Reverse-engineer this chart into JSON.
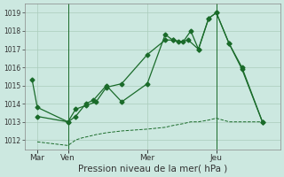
{
  "background_color": "#cce8e0",
  "grid_color": "#aaccbb",
  "line_color": "#1a6b2a",
  "title": "Pression niveau de la mer( hPa )",
  "ylim": [
    1011.5,
    1019.5
  ],
  "yticks": [
    1012,
    1013,
    1014,
    1015,
    1016,
    1017,
    1018,
    1019
  ],
  "xlim": [
    0,
    10.0
  ],
  "xtick_pos": [
    0.5,
    1.7,
    4.8,
    7.5
  ],
  "xtick_labels": [
    "Mar",
    "Ven",
    "Mer",
    "Jeu"
  ],
  "vline_x": [
    1.7,
    7.5
  ],
  "series1_x": [
    0.3,
    0.5,
    1.7,
    2.0,
    2.4,
    2.8,
    3.2,
    3.8,
    4.8,
    5.5,
    5.8,
    6.0,
    6.4,
    6.8,
    7.2,
    7.5,
    8.0,
    8.5,
    9.3
  ],
  "series1_y": [
    1015.3,
    1013.8,
    1013.0,
    1013.7,
    1013.9,
    1014.1,
    1014.9,
    1015.1,
    1016.7,
    1017.5,
    1017.5,
    1017.4,
    1017.5,
    1017.0,
    1018.7,
    1019.0,
    1017.3,
    1016.0,
    1013.0
  ],
  "series2_x": [
    0.5,
    1.7,
    2.0,
    2.4,
    2.7,
    3.2,
    3.8,
    4.8,
    5.5,
    5.8,
    6.2,
    6.5,
    6.8,
    7.2,
    7.5,
    8.0,
    8.5,
    9.3
  ],
  "series2_y": [
    1013.3,
    1013.0,
    1013.3,
    1014.0,
    1014.2,
    1015.0,
    1014.1,
    1015.1,
    1017.8,
    1017.5,
    1017.4,
    1018.0,
    1017.0,
    1018.7,
    1019.0,
    1017.3,
    1015.9,
    1013.0
  ],
  "series3_x": [
    0.5,
    1.7,
    2.0,
    2.2,
    2.5,
    2.8,
    3.2,
    3.8,
    4.8,
    5.5,
    5.8,
    6.2,
    6.5,
    6.8,
    7.2,
    7.5,
    8.0,
    8.5,
    9.3
  ],
  "series3_y": [
    1011.9,
    1011.7,
    1012.0,
    1012.1,
    1012.2,
    1012.3,
    1012.4,
    1012.5,
    1012.6,
    1012.7,
    1012.8,
    1012.9,
    1013.0,
    1013.0,
    1013.1,
    1013.2,
    1013.0,
    1013.0,
    1013.0
  ],
  "ytick_fontsize": 5.5,
  "xtick_fontsize": 6.5,
  "title_fontsize": 7.5
}
